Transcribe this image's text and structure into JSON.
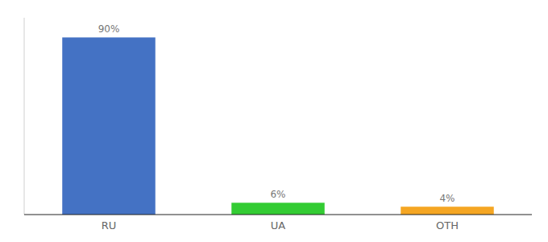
{
  "chart_data": {
    "type": "bar",
    "categories": [
      "RU",
      "UA",
      "OTH"
    ],
    "values": [
      90,
      6,
      4
    ],
    "value_labels": [
      "90%",
      "6%",
      "4%"
    ],
    "colors": [
      "#4472c4",
      "#33cc33",
      "#f5a623"
    ],
    "ylim": [
      0,
      100
    ],
    "data_labels": true,
    "tick_labels": "x"
  }
}
